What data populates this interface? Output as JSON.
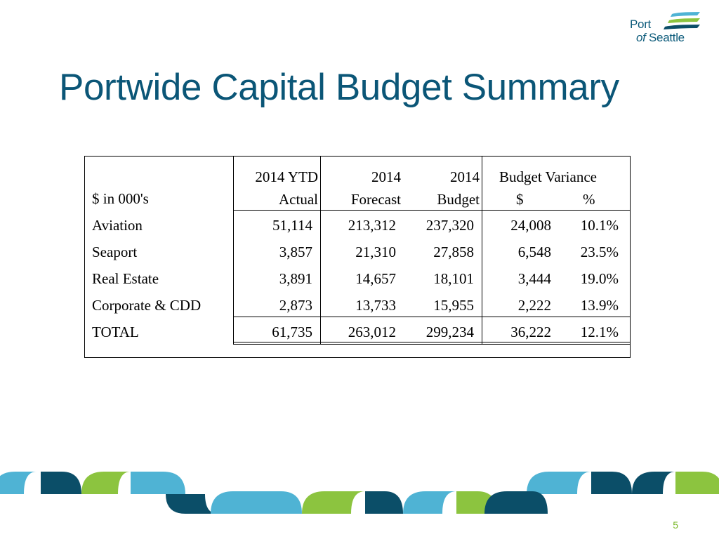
{
  "logo": {
    "line1": "Port",
    "line2_of": "of",
    "line2_name": "Seattle"
  },
  "title": "Portwide Capital Budget Summary",
  "table": {
    "unit_label": "$ in 000's",
    "headers": {
      "ytd_line1": "2014 YTD",
      "ytd_line2": "Actual",
      "forecast_line1": "2014",
      "forecast_line2": "Forecast",
      "budget_line1": "2014",
      "budget_line2": "Budget",
      "variance_title": "Budget Variance",
      "variance_dollar": "$",
      "variance_pct": "%"
    },
    "rows": [
      {
        "label": "Aviation",
        "ytd": "51,114",
        "forecast": "213,312",
        "budget": "237,320",
        "var_dollar": "24,008",
        "var_pct": "10.1%"
      },
      {
        "label": "Seaport",
        "ytd": "3,857",
        "forecast": "21,310",
        "budget": "27,858",
        "var_dollar": "6,548",
        "var_pct": "23.5%"
      },
      {
        "label": "Real Estate",
        "ytd": "3,891",
        "forecast": "14,657",
        "budget": "18,101",
        "var_dollar": "3,444",
        "var_pct": "19.0%"
      },
      {
        "label": "Corporate & CDD",
        "ytd": "2,873",
        "forecast": "13,733",
        "budget": "15,955",
        "var_dollar": "2,222",
        "var_pct": "13.9%"
      }
    ],
    "total": {
      "label": "TOTAL",
      "ytd": "61,735",
      "forecast": "263,012",
      "budget": "299,234",
      "var_dollar": "36,222",
      "var_pct": "12.1%"
    }
  },
  "page_number": "5",
  "colors": {
    "title": "#0b5677",
    "dark_teal": "#0b4e68",
    "light_blue": "#4fb3d4",
    "green": "#8cc43f"
  }
}
